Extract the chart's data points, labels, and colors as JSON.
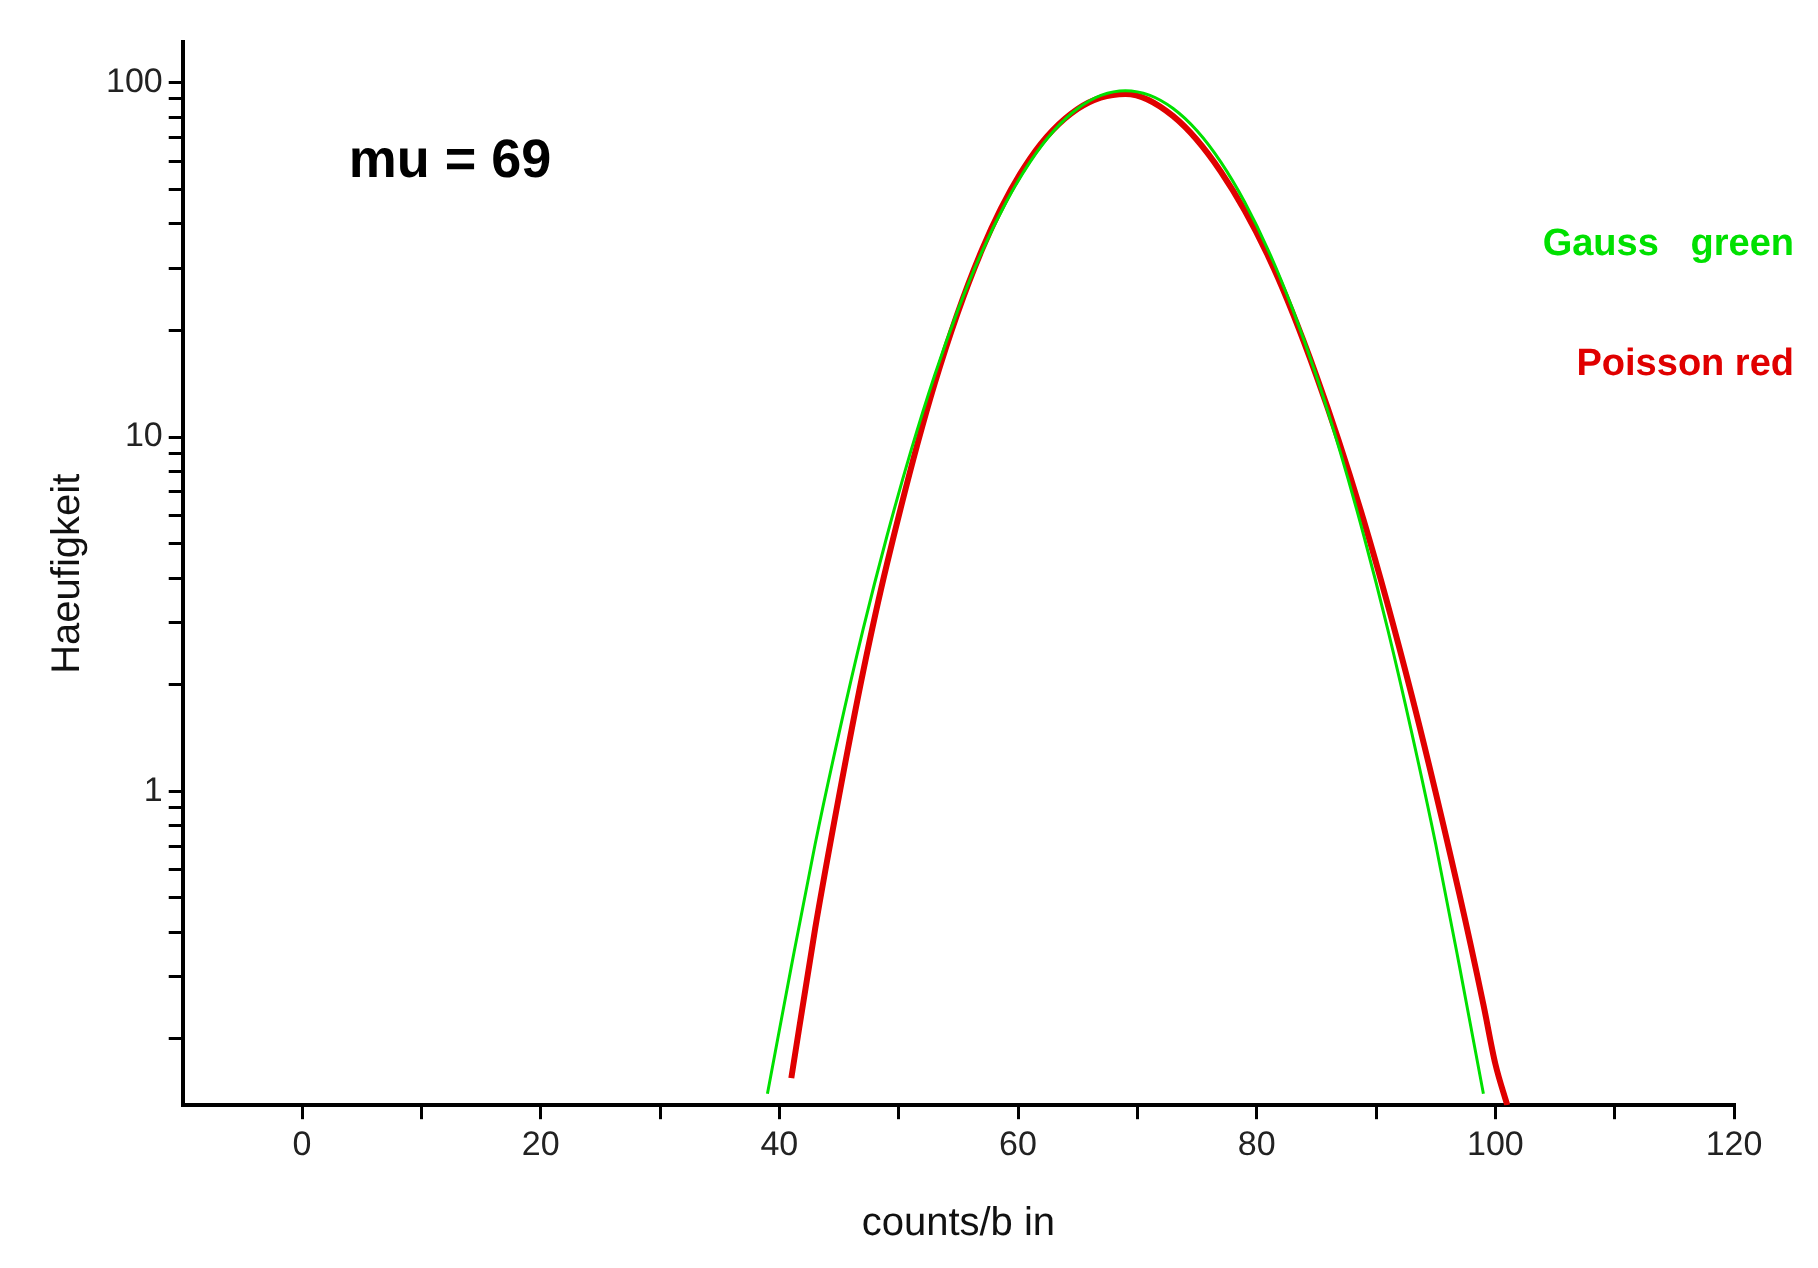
{
  "chart_data": {
    "type": "line",
    "xlabel": "counts/b in",
    "ylabel": "Haeufigkeit",
    "annotations": [
      "mu = 69"
    ],
    "log": "y",
    "grid": false,
    "legend": "top right",
    "xlim": [
      -10,
      120
    ],
    "xticks": [
      0,
      {
        "value": 10,
        "label": null
      },
      20,
      {
        "value": 30,
        "label": null
      },
      40,
      {
        "value": 50,
        "label": null
      },
      60,
      {
        "value": 70,
        "label": null
      },
      80,
      {
        "value": 90,
        "label": null
      },
      100,
      {
        "value": 110,
        "label": null
      },
      120
    ],
    "ylim": [
      0.13,
      130
    ],
    "yticks": [
      {
        "value": 0.2,
        "label": null
      },
      {
        "value": 0.3,
        "label": null
      },
      {
        "value": 0.4,
        "label": null
      },
      {
        "value": 0.5,
        "label": null
      },
      {
        "value": 0.6,
        "label": null
      },
      {
        "value": 0.7,
        "label": null
      },
      {
        "value": 0.8,
        "label": null
      },
      {
        "value": 0.9,
        "label": null
      },
      1,
      {
        "value": 2,
        "label": null
      },
      {
        "value": 3,
        "label": null
      },
      {
        "value": 4,
        "label": null
      },
      {
        "value": 5,
        "label": null
      },
      {
        "value": 6,
        "label": null
      },
      {
        "value": 7,
        "label": null
      },
      {
        "value": 8,
        "label": null
      },
      {
        "value": 9,
        "label": null
      },
      10,
      {
        "value": 20,
        "label": null
      },
      {
        "value": 30,
        "label": null
      },
      {
        "value": 40,
        "label": null
      },
      {
        "value": 50,
        "label": null
      },
      {
        "value": 60,
        "label": null
      },
      {
        "value": 70,
        "label": null
      },
      {
        "value": 80,
        "label": null
      },
      {
        "value": 90,
        "label": null
      },
      100
    ],
    "series": [
      {
        "name": "Gauss   green",
        "color": "#00e000",
        "x": [
          39,
          41,
          43,
          45,
          47,
          49,
          51,
          53,
          55,
          57,
          59,
          61,
          63,
          65,
          67,
          69,
          71,
          73,
          75,
          77,
          79,
          81,
          83,
          85,
          87,
          89,
          91,
          93,
          95,
          97,
          99
        ],
        "values": [
          0.14,
          0.32,
          0.71,
          1.46,
          2.85,
          5.23,
          9.08,
          14.9,
          23,
          33.5,
          46,
          59.7,
          73.2,
          84.6,
          92.3,
          95,
          92.3,
          84.6,
          73.2,
          59.7,
          46,
          33.5,
          23,
          14.9,
          9.08,
          5.23,
          2.85,
          1.46,
          0.71,
          0.32,
          0.14
        ]
      },
      {
        "name": "Poisson red",
        "color": "#e00000",
        "x": [
          41,
          43,
          45,
          47,
          49,
          53,
          57,
          61,
          65,
          69,
          73,
          77,
          81,
          85,
          89,
          93,
          97,
          99,
          100,
          101
        ],
        "values": [
          0.155,
          0.41,
          0.97,
          2.16,
          4.36,
          14.1,
          33.9,
          61.1,
          84.4,
          93,
          80.5,
          56.1,
          32.2,
          14.9,
          5.77,
          1.86,
          0.51,
          0.25,
          0.17,
          0.13
        ]
      }
    ]
  }
}
